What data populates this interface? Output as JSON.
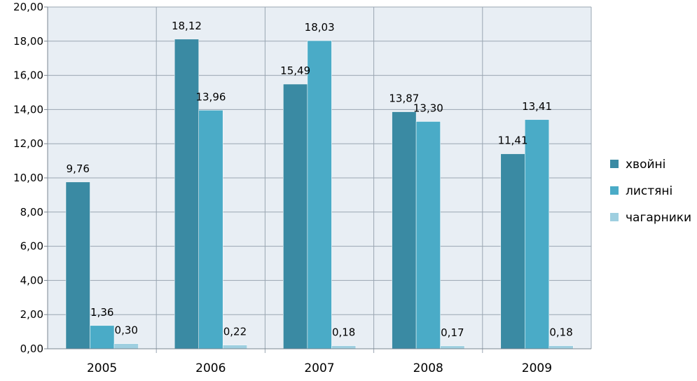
{
  "chart_data": {
    "type": "bar",
    "categories": [
      "2005",
      "2006",
      "2007",
      "2008",
      "2009"
    ],
    "series": [
      {
        "name": "хвойні",
        "values": [
          9.76,
          18.12,
          15.49,
          13.87,
          11.41
        ],
        "labels": [
          "9,76",
          "18,12",
          "15,49",
          "13,87",
          "11,41"
        ],
        "color": "#3a8aa3"
      },
      {
        "name": "листяні",
        "values": [
          1.36,
          13.96,
          18.03,
          13.3,
          13.41
        ],
        "labels": [
          "1,36",
          "13,96",
          "18,03",
          "13,30",
          "13,41"
        ],
        "color": "#4aabc7"
      },
      {
        "name": "чагарники",
        "values": [
          0.3,
          0.22,
          0.18,
          0.17,
          0.18
        ],
        "labels": [
          "0,30",
          "0,22",
          "0,18",
          "0,17",
          "0,18"
        ],
        "color": "#9ecfe0"
      }
    ],
    "y_ticks": [
      0,
      2,
      4,
      6,
      8,
      10,
      12,
      14,
      16,
      18,
      20
    ],
    "y_tick_labels": [
      "0,00",
      "2,00",
      "4,00",
      "6,00",
      "8,00",
      "10,00",
      "12,00",
      "14,00",
      "16,00",
      "18,00",
      "20,00"
    ],
    "ylim": [
      0,
      20
    ],
    "grid": true,
    "legend_position": "right",
    "plot_background": "#e8eef4",
    "grid_color": "#9aa6b2"
  }
}
